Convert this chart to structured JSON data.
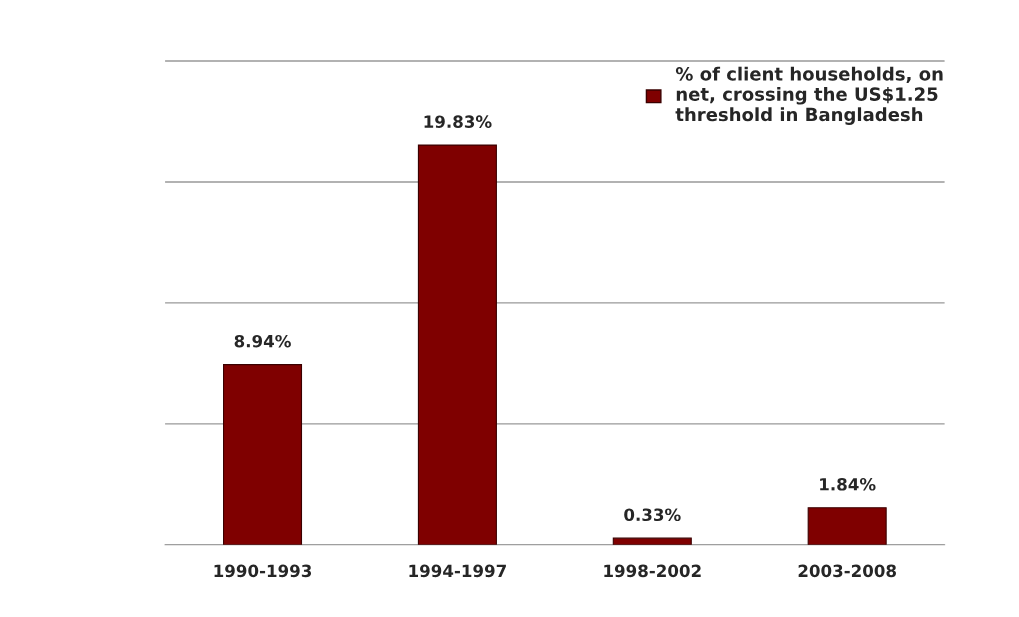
{
  "chart_data": {
    "type": "bar",
    "categories": [
      "1990-1993",
      "1994-1997",
      "1998-2002",
      "2003-2008"
    ],
    "series": [
      {
        "name": "% of client households, on\nnet, crossing the US$1.25\nthreshold in Bangladesh",
        "color": "#7f0000",
        "values": [
          8.94,
          19.83,
          0.33,
          1.84
        ],
        "value_labels": [
          "8.94%",
          "19.83%",
          "0.33%",
          "1.84%"
        ]
      }
    ],
    "tick_labels": "x",
    "grid": "y",
    "legend": "top right"
  }
}
